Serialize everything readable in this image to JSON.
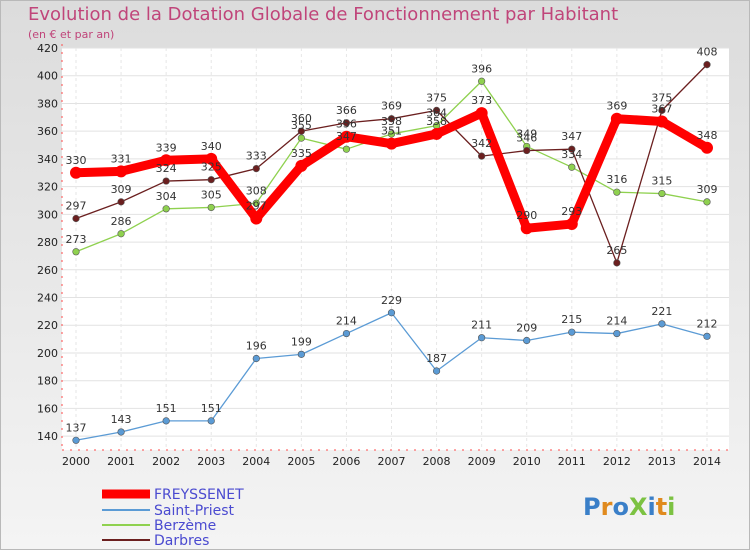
{
  "title": "Evolution de la Dotation Globale de Fonctionnement par Habitant",
  "subtitle": "(en € et par an)",
  "logo": "ProXiti",
  "chart_data": {
    "type": "line",
    "x": [
      "2000",
      "2001",
      "2002",
      "2003",
      "2004",
      "2005",
      "2006",
      "2007",
      "2008",
      "2009",
      "2010",
      "2011",
      "2012",
      "2013",
      "2014"
    ],
    "ylim": [
      130,
      420
    ],
    "yticks": [
      140,
      160,
      180,
      200,
      220,
      240,
      260,
      280,
      300,
      320,
      340,
      360,
      380,
      400,
      420
    ],
    "grid": true,
    "legend_position": "bottom-left",
    "series": [
      {
        "name": "FREYSSENET",
        "color": "#ff0000",
        "values": [
          330,
          331,
          339,
          340,
          297,
          335,
          356,
          351,
          358,
          373,
          290,
          293,
          369,
          367,
          348
        ]
      },
      {
        "name": "Saint-Priest",
        "color": "#5b9bd5",
        "values": [
          137,
          143,
          151,
          151,
          196,
          199,
          214,
          229,
          187,
          211,
          209,
          215,
          214,
          221,
          212
        ]
      },
      {
        "name": "Berzème",
        "color": "#8fd14f",
        "values": [
          273,
          286,
          304,
          305,
          308,
          355,
          347,
          358,
          364,
          396,
          349,
          334,
          316,
          315,
          309
        ]
      },
      {
        "name": "Darbres",
        "color": "#6b1f1f",
        "values": [
          297,
          309,
          324,
          325,
          333,
          360,
          366,
          369,
          375,
          342,
          346,
          347,
          265,
          375,
          408
        ]
      }
    ]
  }
}
